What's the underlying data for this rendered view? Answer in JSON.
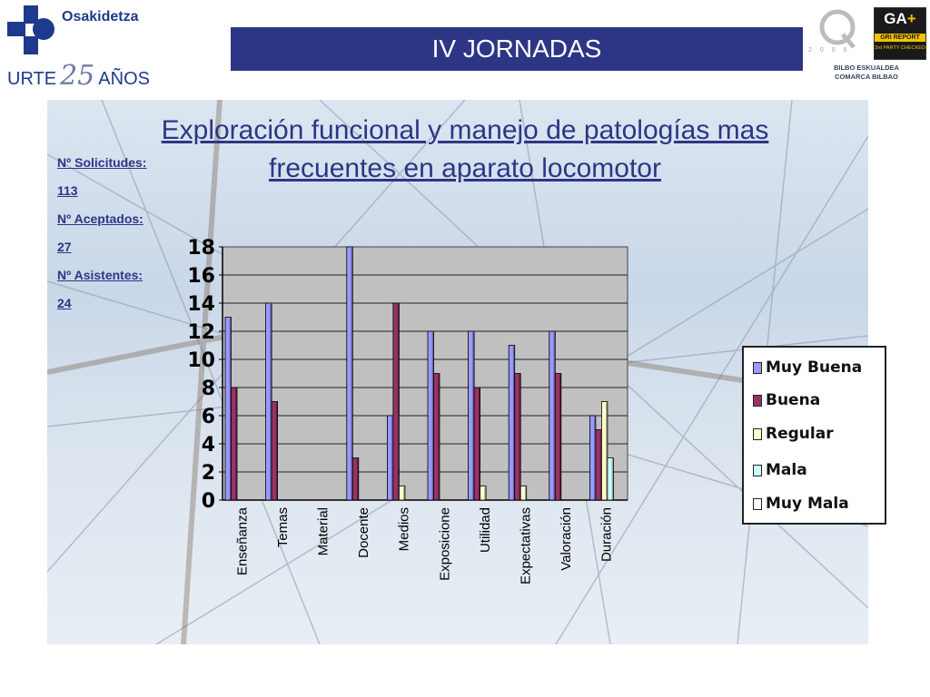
{
  "header": {
    "org_name": "Osakidetza",
    "anniversary": {
      "before": "URTE",
      "number": "25",
      "after": "AÑOS"
    },
    "banner_title": "IV JORNADAS",
    "q_year": "2006",
    "gri": {
      "letters": "GA",
      "plus": "+",
      "line1": "GRI REPORT",
      "line2": "3rd PARTY CHECKED"
    },
    "org_unit_line1": "BILBO ESKUALDEA",
    "org_unit_line2": "COMARCA BILBAO",
    "colors": {
      "brand_blue": "#2d3685"
    }
  },
  "slide": {
    "title_line1": "Exploración funcional y manejo de patologías mas",
    "title_line2": "frecuentes en aparato locomotor",
    "stats": [
      {
        "label": "Nº Solicitudes:",
        "value": "113"
      },
      {
        "label": "Nº Aceptados:",
        "value": "27"
      },
      {
        "label": "Nº Asistentes:",
        "value": "24"
      }
    ]
  },
  "chart_data": {
    "type": "bar",
    "categories": [
      "Enseñanza",
      "Temas",
      "Material",
      "Docente",
      "Medios",
      "Exposicione",
      "Utilidad",
      "Expectativas",
      "Valoración",
      "Duración"
    ],
    "series": [
      {
        "name": "Muy Buena",
        "color": "#9999ff",
        "values": [
          13,
          14,
          0,
          18,
          6,
          12,
          12,
          11,
          12,
          6
        ]
      },
      {
        "name": "Buena",
        "color": "#993366",
        "values": [
          8,
          7,
          0,
          3,
          14,
          9,
          8,
          9,
          9,
          5
        ]
      },
      {
        "name": "Regular",
        "color": "#ffffcc",
        "values": [
          0,
          0,
          0,
          0,
          1,
          0,
          1,
          1,
          0,
          7
        ]
      },
      {
        "name": "Mala",
        "color": "#ccffff",
        "values": [
          0,
          0,
          0,
          0,
          0,
          0,
          0,
          0,
          0,
          3
        ]
      },
      {
        "name": "Muy Mala",
        "color": "#ffffff",
        "values": [
          0,
          0,
          0,
          0,
          0,
          0,
          0,
          0,
          0,
          0
        ]
      }
    ],
    "yticks": [
      "0",
      "2",
      "4",
      "6",
      "8",
      "10",
      "12",
      "14",
      "16",
      "18"
    ],
    "ylim": [
      0,
      18
    ],
    "grid": true,
    "legend_position": "right",
    "plot_background": "#c0c0c0"
  }
}
